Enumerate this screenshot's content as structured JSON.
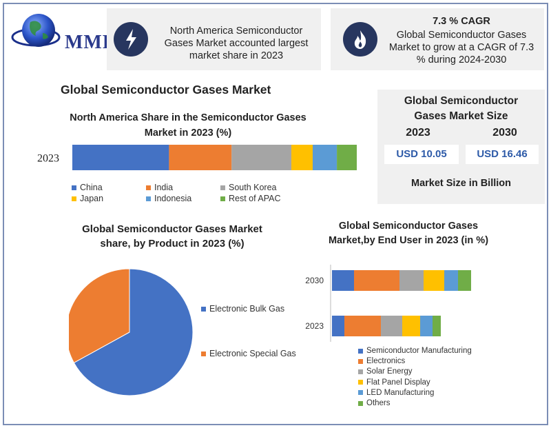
{
  "brand": {
    "logo_text": "MMR"
  },
  "cards": {
    "share_card_text": "North America Semiconductor Gases Market accounted largest market share in 2023",
    "cagr_title": "7.3 % CAGR",
    "cagr_text": "Global Semiconductor Gases Market to grow at a CAGR of 7.3 % during 2024-2030",
    "icons": [
      "lightning-icon",
      "flame-icon"
    ]
  },
  "main_title": "Global Semiconductor Gases Market",
  "market_size": {
    "title": "Global Semiconductor Gases Market Size",
    "year_a": "2023",
    "year_b": "2030",
    "value_a": "USD 10.05",
    "value_b": "USD 16.46",
    "footer": "Market Size in Billion"
  },
  "chart_data": [
    {
      "type": "bar",
      "orientation": "horizontal",
      "stacked": true,
      "title": "North America Share in the Semiconductor Gases Market in 2023 (%)",
      "categories": [
        "2023"
      ],
      "series": [
        {
          "name": "China",
          "values": [
            34
          ],
          "color": "#4472c4"
        },
        {
          "name": "India",
          "values": [
            22
          ],
          "color": "#ed7d31"
        },
        {
          "name": "South Korea",
          "values": [
            21
          ],
          "color": "#a5a5a5"
        },
        {
          "name": "Japan",
          "values": [
            7.5
          ],
          "color": "#ffc000"
        },
        {
          "name": "Indonesia",
          "values": [
            8.5
          ],
          "color": "#5b9bd5"
        },
        {
          "name": "Rest of APAC",
          "values": [
            7
          ],
          "color": "#70ad47"
        }
      ],
      "legend": "bottom"
    },
    {
      "type": "pie",
      "title": "Global Semiconductor Gases Market share, by Product in 2023  (%)",
      "labels": [
        "Electronic Bulk Gas",
        "Electronic Special Gas"
      ],
      "values": [
        67,
        33
      ],
      "colors": [
        "#4472c4",
        "#ed7d31"
      ],
      "legend": "right"
    },
    {
      "type": "bar",
      "orientation": "horizontal",
      "stacked": true,
      "title": "Global Semiconductor Gases Market,by End User in 2023 (in %)",
      "categories": [
        "2030",
        "2023"
      ],
      "series": [
        {
          "name": "Semiconductor Manufacturing",
          "values": [
            32,
            18
          ],
          "color": "#4472c4"
        },
        {
          "name": "Electronics",
          "values": [
            66,
            53
          ],
          "color": "#ed7d31"
        },
        {
          "name": "Solar Energy",
          "values": [
            35,
            31
          ],
          "color": "#a5a5a5"
        },
        {
          "name": "Flat Panel Display",
          "values": [
            30,
            26
          ],
          "color": "#ffc000"
        },
        {
          "name": "LED Manufacturing",
          "values": [
            20,
            18
          ],
          "color": "#5b9bd5"
        },
        {
          "name": "Others",
          "values": [
            19,
            12
          ],
          "color": "#70ad47"
        }
      ],
      "legend": "bottom"
    }
  ]
}
